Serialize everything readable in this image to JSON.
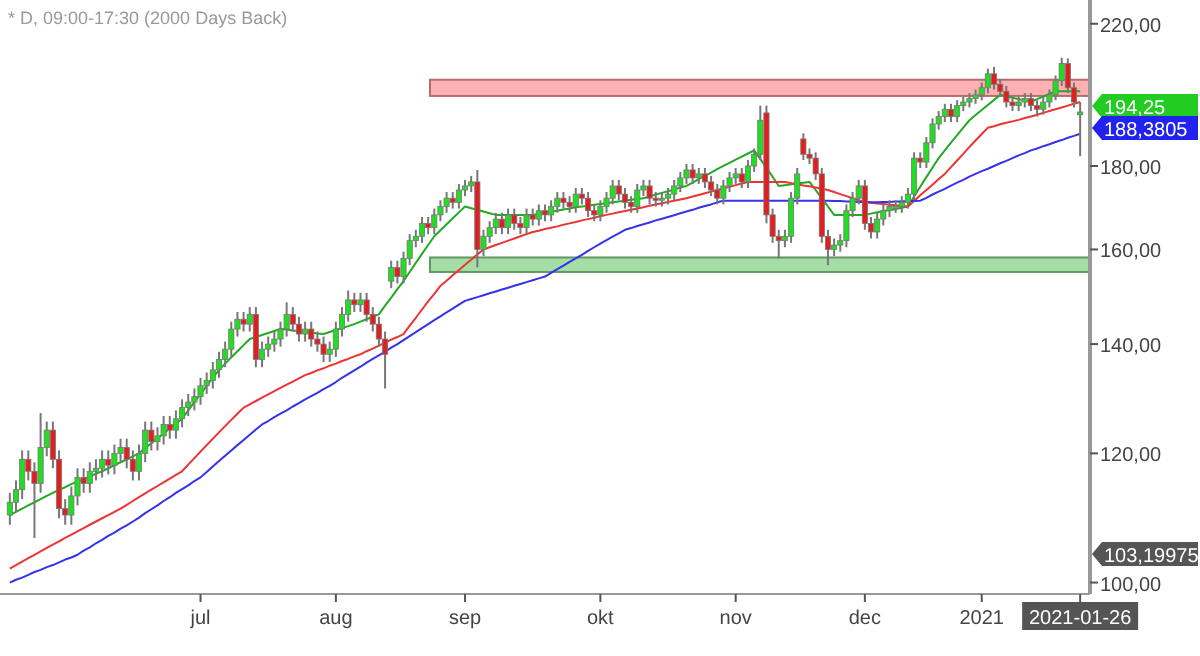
{
  "chart_data": {
    "type": "candlestick",
    "title": "* D, 09:00-17:30 (2000 Days Back)",
    "log": "y",
    "ylim": [
      98.4,
      227.5
    ],
    "yticks": [
      {
        "value": 100,
        "label": "100,00"
      },
      {
        "value": 120,
        "label": "120,00"
      },
      {
        "value": 140,
        "label": "140,00"
      },
      {
        "value": 160,
        "label": "160,00"
      },
      {
        "value": 180,
        "label": "180,00"
      },
      {
        "value": 220,
        "label": "220,00"
      }
    ],
    "categories": [
      null,
      null,
      null,
      null,
      null,
      null,
      null,
      null,
      null,
      null,
      null,
      null,
      null,
      null,
      null,
      null,
      null,
      null,
      null,
      null,
      null,
      null,
      null,
      null,
      null,
      null,
      null,
      null,
      null,
      null,
      null,
      "jul",
      null,
      null,
      null,
      null,
      null,
      null,
      null,
      null,
      null,
      null,
      null,
      null,
      null,
      null,
      null,
      null,
      null,
      null,
      null,
      null,
      null,
      "aug",
      null,
      null,
      null,
      null,
      null,
      null,
      null,
      null,
      null,
      null,
      null,
      null,
      null,
      null,
      null,
      null,
      null,
      null,
      null,
      null,
      "sep",
      null,
      null,
      null,
      null,
      null,
      null,
      null,
      null,
      null,
      null,
      null,
      null,
      null,
      null,
      null,
      null,
      null,
      null,
      null,
      null,
      null,
      "okt",
      null,
      null,
      null,
      null,
      null,
      null,
      null,
      null,
      null,
      null,
      null,
      null,
      null,
      null,
      null,
      null,
      null,
      null,
      null,
      null,
      null,
      "nov",
      null,
      null,
      null,
      null,
      null,
      null,
      null,
      null,
      null,
      null,
      null,
      null,
      null,
      null,
      null,
      null,
      null,
      null,
      null,
      null,
      "dec",
      null,
      null,
      null,
      null,
      null,
      null,
      null,
      null,
      null,
      null,
      null,
      null,
      null,
      null,
      null,
      null,
      null,
      null,
      "2021",
      null,
      null,
      null,
      null,
      null,
      null,
      null,
      null,
      null,
      null,
      null,
      null,
      null,
      null,
      null,
      "2021-01-26"
    ],
    "ohlc": [
      [
        110,
        113.5,
        108.5,
        112
      ],
      [
        112,
        115.5,
        110.5,
        114
      ],
      [
        114,
        120.5,
        112.5,
        119
      ],
      [
        119,
        120.5,
        115.5,
        117
      ],
      [
        117,
        118.5,
        106.5,
        115
      ],
      [
        115,
        127,
        113.5,
        121
      ],
      [
        121,
        125.5,
        119.5,
        124
      ],
      [
        124,
        125.5,
        117.5,
        119
      ],
      [
        119,
        120.5,
        109.5,
        111
      ],
      [
        111,
        112.5,
        108.5,
        110
      ],
      [
        110,
        114.5,
        108.5,
        113
      ],
      [
        113,
        117.5,
        111.5,
        116
      ],
      [
        116,
        117.5,
        113.5,
        115
      ],
      [
        115,
        118.5,
        113.5,
        117
      ],
      [
        117,
        119,
        115.5,
        117.5
      ],
      [
        117.5,
        120.5,
        116,
        119
      ],
      [
        119,
        120.5,
        116.5,
        118
      ],
      [
        118,
        121.5,
        116.5,
        120
      ],
      [
        120,
        122.5,
        118.5,
        121
      ],
      [
        121,
        122.5,
        117.5,
        119
      ],
      [
        119,
        120.5,
        115.5,
        117
      ],
      [
        117,
        121.5,
        115.5,
        120
      ],
      [
        120,
        125.5,
        118.5,
        124
      ],
      [
        124,
        125.5,
        120.5,
        122
      ],
      [
        122,
        124.5,
        120.5,
        123
      ],
      [
        123,
        126.5,
        121.5,
        125
      ],
      [
        125,
        126.5,
        122.5,
        124
      ],
      [
        124,
        127.5,
        122.5,
        126
      ],
      [
        126,
        129.5,
        124.5,
        128
      ],
      [
        128,
        130.5,
        126.5,
        129
      ],
      [
        129,
        131.5,
        127.5,
        130
      ],
      [
        130,
        133.5,
        128.5,
        132
      ],
      [
        132,
        134.5,
        130.5,
        133
      ],
      [
        133,
        136.5,
        131.5,
        135
      ],
      [
        135,
        138.5,
        133.5,
        137
      ],
      [
        137,
        140.5,
        135.5,
        139
      ],
      [
        139,
        144.5,
        137.5,
        143
      ],
      [
        143,
        146.5,
        141.5,
        145
      ],
      [
        145,
        146.5,
        142.5,
        144
      ],
      [
        144,
        147.5,
        142.5,
        146
      ],
      [
        146,
        147.5,
        135.5,
        137
      ],
      [
        137,
        140.5,
        135.5,
        139
      ],
      [
        139,
        141.5,
        137.5,
        140
      ],
      [
        140,
        142.5,
        138.5,
        141
      ],
      [
        141,
        144.5,
        139.5,
        143
      ],
      [
        143,
        148.5,
        141.5,
        146
      ],
      [
        146,
        147.5,
        142.5,
        144
      ],
      [
        144,
        145.5,
        140.5,
        142
      ],
      [
        142,
        144.5,
        140.5,
        143
      ],
      [
        143,
        144.5,
        139.5,
        141
      ],
      [
        141,
        142.5,
        138.5,
        140
      ],
      [
        140,
        141.5,
        136.5,
        138
      ],
      [
        138,
        140.5,
        136.5,
        139
      ],
      [
        139,
        144.5,
        137.5,
        143
      ],
      [
        143,
        147.5,
        141.5,
        146
      ],
      [
        146,
        151,
        144.5,
        149
      ],
      [
        149,
        150.5,
        146.5,
        148
      ],
      [
        148,
        150.5,
        146.5,
        149
      ],
      [
        149,
        150.5,
        144.5,
        146
      ],
      [
        146,
        147.5,
        142.5,
        144
      ],
      [
        144,
        145.5,
        139.5,
        141
      ],
      [
        141,
        142.5,
        131.5,
        138
      ],
      [
        153,
        157.5,
        151.5,
        156
      ],
      [
        156,
        157.5,
        152.5,
        154
      ],
      [
        154,
        159.5,
        152.5,
        158
      ],
      [
        158,
        163.5,
        156.5,
        162
      ],
      [
        162,
        164.5,
        160.5,
        163
      ],
      [
        163,
        167.5,
        161.5,
        166
      ],
      [
        166,
        167.5,
        163.5,
        165
      ],
      [
        165,
        169.5,
        163.5,
        168
      ],
      [
        168,
        171.5,
        166.5,
        170
      ],
      [
        170,
        173.5,
        168.5,
        172
      ],
      [
        172,
        173.5,
        169.5,
        171
      ],
      [
        171,
        175.5,
        169.5,
        174
      ],
      [
        174,
        176.5,
        172.5,
        175
      ],
      [
        175,
        177.5,
        173.5,
        176
      ],
      [
        176,
        179,
        156,
        160
      ],
      [
        160,
        164.5,
        158.5,
        163
      ],
      [
        163,
        166.5,
        161.5,
        165
      ],
      [
        165,
        168.5,
        163.5,
        167
      ],
      [
        167,
        168.5,
        163.5,
        165
      ],
      [
        165,
        169.5,
        163.5,
        168
      ],
      [
        168,
        169.5,
        164.5,
        166
      ],
      [
        166,
        167.5,
        163.5,
        165
      ],
      [
        165,
        169.5,
        163.5,
        168
      ],
      [
        168,
        169.5,
        165.5,
        167
      ],
      [
        167,
        170.5,
        165.5,
        169
      ],
      [
        169,
        170.5,
        166.5,
        168
      ],
      [
        168,
        171.5,
        166.5,
        170
      ],
      [
        170,
        173.5,
        168.5,
        172
      ],
      [
        172,
        173.5,
        169.5,
        171
      ],
      [
        171,
        172.5,
        168.5,
        170
      ],
      [
        170,
        174.5,
        168.5,
        173
      ],
      [
        173,
        174.5,
        170.5,
        172
      ],
      [
        172,
        173.5,
        167.5,
        169
      ],
      [
        169,
        170.5,
        166.5,
        168
      ],
      [
        168,
        171.5,
        166.5,
        170
      ],
      [
        170,
        173.5,
        168.5,
        172
      ],
      [
        172,
        176.5,
        170.5,
        175
      ],
      [
        175,
        176.5,
        171.5,
        173
      ],
      [
        173,
        174.5,
        169.5,
        171
      ],
      [
        171,
        172.5,
        168.5,
        170
      ],
      [
        170,
        175.5,
        168.5,
        174
      ],
      [
        174,
        176.5,
        172.5,
        175
      ],
      [
        175,
        176.5,
        170.5,
        172
      ],
      [
        172,
        173.5,
        170,
        171.5
      ],
      [
        171.5,
        173.5,
        170,
        172
      ],
      [
        172,
        174.5,
        170.5,
        173
      ],
      [
        173,
        176.5,
        171.5,
        175
      ],
      [
        175,
        178.5,
        173.5,
        177
      ],
      [
        177,
        180.5,
        175.5,
        179
      ],
      [
        179,
        180.5,
        175.5,
        177
      ],
      [
        177,
        179.5,
        175.5,
        178
      ],
      [
        178,
        179.5,
        174.5,
        176
      ],
      [
        176,
        177.5,
        172.5,
        174
      ],
      [
        174,
        175.5,
        170.5,
        172
      ],
      [
        172,
        176.5,
        170.5,
        175
      ],
      [
        175,
        178.5,
        173.5,
        177
      ],
      [
        177,
        179.5,
        175.5,
        178
      ],
      [
        178,
        179.5,
        174.5,
        176
      ],
      [
        176,
        181.5,
        174.5,
        180
      ],
      [
        180,
        184.5,
        178.5,
        183
      ],
      [
        183,
        196,
        181.5,
        192
      ],
      [
        194,
        196,
        166,
        168
      ],
      [
        168,
        169.5,
        161.5,
        163
      ],
      [
        163,
        164.5,
        158,
        162
      ],
      [
        162,
        164.5,
        160.5,
        163
      ],
      [
        163,
        173.5,
        161.5,
        172
      ],
      [
        172,
        179.5,
        170.5,
        178
      ],
      [
        187,
        188.5,
        181.5,
        183
      ],
      [
        183,
        184.5,
        180.5,
        182
      ],
      [
        182,
        183.5,
        176.5,
        178
      ],
      [
        178,
        179.5,
        161.5,
        163
      ],
      [
        163,
        164.5,
        156.5,
        160
      ],
      [
        160,
        162.5,
        158.5,
        161
      ],
      [
        161,
        163.5,
        159.5,
        162
      ],
      [
        162,
        170.5,
        160.5,
        169
      ],
      [
        169,
        173.5,
        167.5,
        172
      ],
      [
        172,
        176.5,
        170.5,
        175
      ],
      [
        175,
        176.5,
        164.5,
        166
      ],
      [
        166,
        167.5,
        162.5,
        164
      ],
      [
        164,
        168.5,
        162.5,
        167
      ],
      [
        167,
        170.5,
        165.5,
        169
      ],
      [
        169,
        171.5,
        167.5,
        170
      ],
      [
        170,
        171.5,
        168.5,
        170
      ],
      [
        170,
        172.5,
        168.5,
        171
      ],
      [
        171,
        174.5,
        169.5,
        173
      ],
      [
        173,
        183.5,
        171.5,
        182
      ],
      [
        182,
        183.5,
        179.5,
        181
      ],
      [
        181,
        187.5,
        179.5,
        186
      ],
      [
        186,
        192.5,
        184.5,
        191
      ],
      [
        191,
        194.5,
        189.5,
        193
      ],
      [
        193,
        196.5,
        191.5,
        195
      ],
      [
        195,
        196.5,
        191.5,
        193
      ],
      [
        193,
        197.5,
        191.5,
        196
      ],
      [
        196,
        198.5,
        194.5,
        197
      ],
      [
        197,
        199.5,
        195.5,
        198
      ],
      [
        198,
        200.5,
        196.5,
        199
      ],
      [
        199,
        202.5,
        197.5,
        201
      ],
      [
        201,
        206.5,
        199.5,
        205
      ],
      [
        205,
        207,
        200.5,
        202
      ],
      [
        202,
        203.5,
        198.5,
        200
      ],
      [
        200,
        201.5,
        195.5,
        197
      ],
      [
        197,
        198.5,
        194.5,
        196
      ],
      [
        196,
        198.5,
        194.5,
        197
      ],
      [
        197,
        199.5,
        195.5,
        198
      ],
      [
        198,
        199.5,
        194.5,
        196
      ],
      [
        196,
        197.5,
        193,
        195
      ],
      [
        195,
        198.5,
        193.5,
        197
      ],
      [
        197,
        200.5,
        195.5,
        199
      ],
      [
        199,
        204.5,
        197.5,
        203
      ],
      [
        203,
        209.7,
        201.5,
        208
      ],
      [
        208,
        209.5,
        199.5,
        201
      ],
      [
        201,
        202.5,
        195.5,
        197
      ],
      [
        193.5,
        197,
        182.5,
        194.25
      ]
    ],
    "series": [
      {
        "type": "line",
        "color": "#22aa22",
        "values": [
          110,
          110.5,
          111,
          111.5,
          112,
          112.5,
          113,
          113.5,
          114,
          114.4,
          114.9,
          115.3,
          115.7,
          116.1,
          116.6,
          117,
          117.5,
          118,
          118.5,
          119,
          119.5,
          120,
          120.9,
          121.7,
          122.6,
          123.4,
          124.3,
          125.1,
          126,
          127.5,
          129,
          130.5,
          132,
          133.5,
          135,
          136.2,
          137.4,
          138.6,
          139.8,
          141,
          141.4,
          141.8,
          142.2,
          142.6,
          143,
          142.9,
          142.7,
          142.6,
          142.4,
          142.3,
          142.1,
          142,
          142.4,
          142.8,
          143.2,
          143.6,
          144,
          144.5,
          145,
          145.5,
          146,
          147.8,
          149.5,
          151.3,
          153,
          155,
          157,
          159,
          161,
          163,
          164.4,
          165.8,
          167.2,
          168.6,
          170,
          169.6,
          169.2,
          168.8,
          168.4,
          168,
          168,
          168,
          168,
          168,
          168,
          168,
          168.3,
          168.5,
          168.8,
          169,
          169.3,
          169.5,
          169.8,
          170,
          170.2,
          170.4,
          170.6,
          170.8,
          171,
          171.2,
          171.4,
          171.6,
          171.8,
          172,
          172.4,
          172.9,
          173.3,
          173.7,
          174.1,
          174.6,
          175,
          175.8,
          176.7,
          177.5,
          178.3,
          179.2,
          180,
          180.8,
          181.6,
          182.4,
          183.2,
          184,
          181.8,
          179.5,
          177.3,
          175,
          175.2,
          175.4,
          175.6,
          175.8,
          176,
          174,
          172,
          170,
          168,
          168,
          168,
          168,
          168,
          168,
          168.3,
          168.6,
          168.9,
          169.1,
          169.4,
          169.7,
          170,
          172.4,
          174.8,
          177.2,
          179.6,
          182,
          184,
          186,
          188,
          190,
          192,
          193.4,
          194.8,
          196.2,
          197.6,
          199,
          198.6,
          198.2,
          197.8,
          197.4,
          197,
          197.8,
          198.5,
          199.3,
          200,
          200,
          200,
          200,
          200
        ]
      },
      {
        "type": "line",
        "color": "#ee3333",
        "values": [
          102,
          102.5,
          103,
          103.5,
          104,
          104.5,
          105,
          105.5,
          106,
          106.5,
          107,
          107.5,
          108,
          108.5,
          109,
          109.5,
          110,
          110.5,
          111,
          111.6,
          112.2,
          112.8,
          113.4,
          114,
          114.6,
          115.2,
          115.8,
          116.4,
          117,
          118.1,
          119.2,
          120.3,
          121.4,
          122.5,
          123.6,
          124.7,
          125.8,
          126.9,
          128,
          128.6,
          129.2,
          129.8,
          130.4,
          131,
          131.6,
          132.2,
          132.8,
          133.4,
          134,
          134.4,
          134.9,
          135.3,
          135.8,
          136.2,
          136.7,
          137.1,
          137.6,
          138,
          138.6,
          139.1,
          139.7,
          140.3,
          140.9,
          141.4,
          142,
          143.7,
          145.3,
          147,
          148.7,
          150.3,
          152,
          153.1,
          154.3,
          155.4,
          156.6,
          157.7,
          158.9,
          160,
          160.5,
          161,
          161.5,
          162,
          162.5,
          163,
          163.5,
          164,
          164.3,
          164.7,
          165,
          165.3,
          165.7,
          166,
          166.3,
          166.7,
          167,
          167.3,
          167.7,
          168,
          168.3,
          168.6,
          168.9,
          169.2,
          169.5,
          169.8,
          170.2,
          170.5,
          170.8,
          171.1,
          171.4,
          171.7,
          172,
          172.4,
          172.8,
          173.2,
          173.6,
          174,
          174.4,
          174.8,
          175.2,
          175.6,
          176,
          176,
          176,
          176,
          176,
          176,
          176,
          175.7,
          175.4,
          175.1,
          174.9,
          174.6,
          174.3,
          174,
          173.5,
          173,
          172.5,
          172,
          171.5,
          171,
          170.9,
          170.7,
          170.6,
          170.4,
          170.3,
          170.1,
          170,
          171.3,
          172.7,
          174,
          175.3,
          176.7,
          178,
          179.7,
          181.4,
          183.1,
          184.9,
          186.6,
          188.3,
          190,
          190.4,
          190.9,
          191.3,
          191.7,
          192.1,
          192.6,
          193,
          193.5,
          194,
          194.5,
          195,
          195.5,
          196,
          196.5,
          197
        ]
      },
      {
        "type": "line",
        "color": "#3333ee",
        "values": [
          100,
          100.4,
          100.7,
          101.1,
          101.5,
          101.8,
          102.2,
          102.5,
          102.9,
          103.3,
          103.6,
          104,
          104.6,
          105.1,
          105.7,
          106.2,
          106.8,
          107.3,
          107.9,
          108.4,
          109,
          109.6,
          110.3,
          110.9,
          111.5,
          112.2,
          112.8,
          113.5,
          114.1,
          114.7,
          115.4,
          116,
          116.9,
          117.8,
          118.7,
          119.6,
          120.5,
          121.4,
          122.3,
          123.2,
          124.1,
          125,
          125.6,
          126.3,
          126.9,
          127.5,
          128.2,
          128.8,
          129.5,
          130.1,
          130.7,
          131.4,
          132,
          132.7,
          133.5,
          134.2,
          134.9,
          135.6,
          136.4,
          137.1,
          137.8,
          138.5,
          139.3,
          140,
          140.8,
          141.6,
          142.4,
          143.2,
          144,
          144.8,
          145.6,
          146.4,
          147.2,
          148,
          148.8,
          149.2,
          149.6,
          150,
          150.4,
          150.8,
          151.2,
          151.6,
          152,
          152.4,
          152.8,
          153.2,
          153.6,
          154,
          154.8,
          155.6,
          156.4,
          157.2,
          158,
          158.8,
          159.7,
          160.5,
          161.3,
          162.1,
          162.9,
          163.7,
          164.5,
          164.9,
          165.4,
          165.8,
          166.2,
          166.7,
          167.1,
          167.5,
          167.9,
          168.4,
          168.8,
          169.2,
          169.7,
          170.1,
          170.5,
          171,
          171.4,
          171.4,
          171.4,
          171.4,
          171.4,
          171.4,
          171.4,
          171.4,
          171.4,
          171.4,
          171.4,
          171.4,
          171.4,
          171.4,
          171.4,
          171.4,
          171.4,
          171.4,
          171.3,
          171.3,
          171.2,
          171.2,
          171.1,
          171.1,
          171,
          171,
          171.1,
          171.1,
          171.2,
          171.2,
          171.3,
          171.3,
          171.4,
          172.1,
          172.9,
          173.6,
          174.3,
          175.1,
          175.8,
          176.5,
          177.3,
          178,
          178.7,
          179.3,
          180,
          180.7,
          181.3,
          182,
          182.7,
          183.3,
          184,
          184.5,
          185.1,
          185.6,
          186.2,
          186.7,
          187.3,
          187.8,
          188.3805
        ]
      }
    ],
    "bands": [
      {
        "axis": "y",
        "from": 198.7,
        "to": 203.3,
        "color": "#ff9c9c"
      },
      {
        "axis": "y",
        "from": 155,
        "to": 158.2,
        "color": "#8fd68f"
      }
    ],
    "annotations": [
      "194,25",
      "188,3805",
      "103,19975"
    ]
  }
}
